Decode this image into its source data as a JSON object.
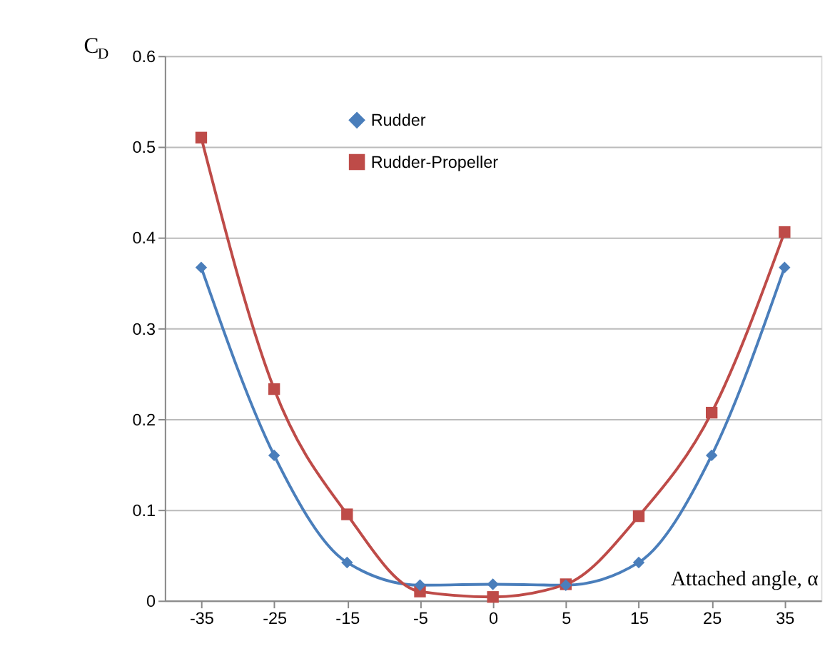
{
  "chart_data": {
    "type": "line",
    "ylabel": "C$_{D}$",
    "xlabel": "Attached angle, α",
    "categories": [
      "-35",
      "-25",
      "-15",
      "-5",
      "0",
      "5",
      "15",
      "25",
      "35"
    ],
    "series": [
      {
        "name": "Rudder",
        "color": "#4a7ebb",
        "marker": "diamond",
        "values": [
          0.367,
          0.16,
          0.042,
          0.017,
          0.018,
          0.017,
          0.042,
          0.16,
          0.367
        ]
      },
      {
        "name": "Rudder-Propeller",
        "color": "#be4b48",
        "marker": "square",
        "values": [
          0.51,
          0.233,
          0.095,
          0.01,
          0.004,
          0.018,
          0.093,
          0.207,
          0.406
        ]
      }
    ],
    "ylim": [
      0,
      0.6
    ],
    "yticks": [
      0,
      0.1,
      0.2,
      0.3,
      0.4,
      0.5,
      0.6
    ],
    "grid": "y",
    "legend": "top left"
  }
}
